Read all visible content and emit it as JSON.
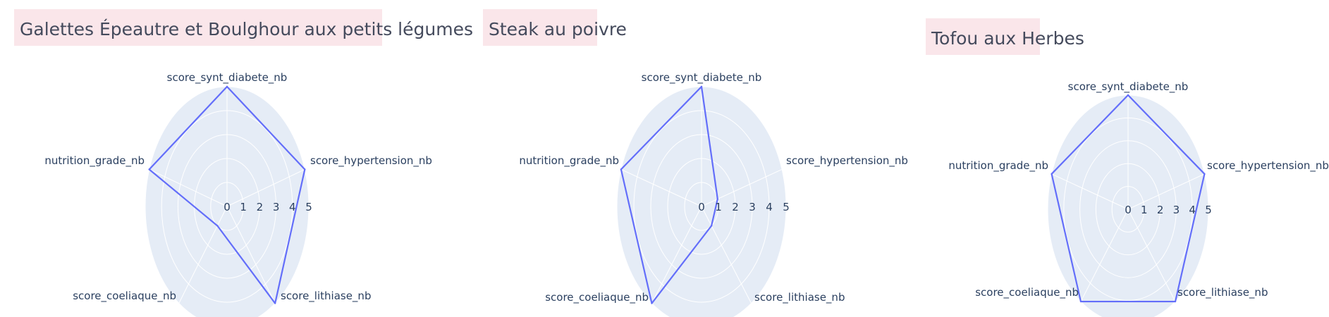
{
  "colors": {
    "polar_bg": "#e5ecf6",
    "grid": "#ffffff",
    "line": "#636efa",
    "title_bg": "#fae6ea",
    "text": "#2a3f5f"
  },
  "chart_data": [
    {
      "type": "radar",
      "title": "Galettes Épeautre et Boulghour aux petits légumes",
      "axes": [
        "score_synt_diabete_nb",
        "score_hypertension_nb",
        "score_lithiase_nb",
        "score_coeliaque_nb",
        "nutrition_grade_nb"
      ],
      "values": [
        5,
        5,
        5,
        1,
        5
      ],
      "radial_ticks": [
        "0",
        "1",
        "2",
        "3",
        "4",
        "5"
      ],
      "range": [
        0,
        5
      ],
      "grid": true
    },
    {
      "type": "radar",
      "title": "Steak au poivre",
      "axes": [
        "score_synt_diabete_nb",
        "score_hypertension_nb",
        "score_lithiase_nb",
        "score_coeliaque_nb",
        "nutrition_grade_nb"
      ],
      "values": [
        5,
        1,
        1,
        5,
        5
      ],
      "radial_ticks": [
        "0",
        "1",
        "2",
        "3",
        "4",
        "5"
      ],
      "range": [
        0,
        5
      ],
      "grid": true
    },
    {
      "type": "radar",
      "title": "Tofou aux Herbes",
      "axes": [
        "score_synt_diabete_nb",
        "score_hypertension_nb",
        "score_lithiase_nb",
        "score_coeliaque_nb",
        "nutrition_grade_nb"
      ],
      "values": [
        5,
        5,
        5,
        5,
        5
      ],
      "radial_ticks": [
        "0",
        "1",
        "2",
        "3",
        "4",
        "5"
      ],
      "range": [
        0,
        5
      ],
      "grid": true
    }
  ]
}
